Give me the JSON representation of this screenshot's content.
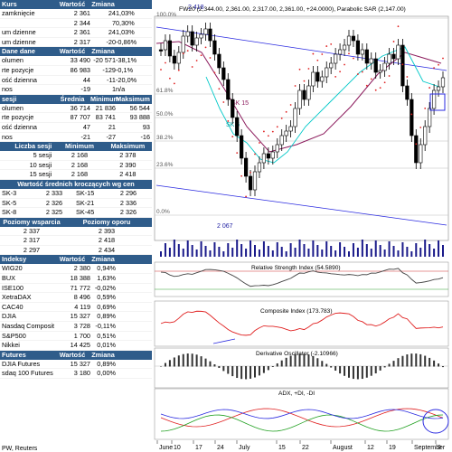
{
  "kursy": {
    "headers": [
      "Kurs",
      "Wartość",
      "Zmiana"
    ],
    "rows": [
      [
        "zamknięcie",
        "2 361",
        "24",
        "1,03%"
      ],
      [
        "",
        "2 344",
        "7",
        "0,30%"
      ],
      [
        "um dzienne",
        "2 361",
        "24",
        "1,03%"
      ],
      [
        "um dzienne",
        "2 317",
        "-20",
        "-0,86%"
      ]
    ]
  },
  "dane": {
    "headers": [
      "Dane dane",
      "Wartość",
      "Zmiana"
    ],
    "rows": [
      [
        "olumen",
        "33 490",
        "-20 571",
        "-38,1%"
      ],
      [
        "rte pozycje",
        "86 983",
        "-129",
        "-0,1%"
      ],
      [
        "ość dzienna",
        "44",
        "-11",
        "-20,0%"
      ],
      [
        "nos",
        "-19",
        "1",
        "n/a"
      ]
    ]
  },
  "sesji": {
    "headers": [
      "sesji",
      "Średnia",
      "Minimum",
      "Maksimum"
    ],
    "rows": [
      [
        "olumen",
        "36 714",
        "21 836",
        "56 544"
      ],
      [
        "rte pozycje",
        "87 707",
        "83 741",
        "93 888"
      ],
      [
        "ość dzienna",
        "47",
        "21",
        "93"
      ],
      [
        "nos",
        "-21",
        "-27",
        "-16"
      ]
    ]
  },
  "liczba": {
    "headers": [
      "Liczba sesji",
      "Minimum",
      "Maksimum"
    ],
    "rows": [
      [
        "5 sesji",
        "2 168",
        "2 378"
      ],
      [
        "10 sesji",
        "2 168",
        "2 390"
      ],
      [
        "15 sesji",
        "2 168",
        "2 418"
      ]
    ]
  },
  "srednie": {
    "title": "Wartość średnich kroczących wg cen zamknięcia",
    "rows": [
      [
        "SK-3",
        "2 333",
        "SK-15",
        "2 296"
      ],
      [
        "SK-5",
        "2 326",
        "SK-21",
        "2 336"
      ],
      [
        "SK-8",
        "2 325",
        "SK-45",
        "2 326"
      ]
    ]
  },
  "poziomy": {
    "headers": [
      "Poziomy wsparcia",
      "Poziomy oporu"
    ],
    "rows": [
      [
        "2 337",
        "2 393"
      ],
      [
        "2 317",
        "2 418"
      ],
      [
        "2 297",
        "2 434"
      ]
    ]
  },
  "indeksy": {
    "headers": [
      "Indeksy",
      "Wartość",
      "Zmiana"
    ],
    "rows": [
      [
        "WIG20",
        "2 380",
        "0,94%"
      ],
      [
        "BUX",
        "18 388",
        "1,63%"
      ],
      [
        "ISE100",
        "71 772",
        "-0,02%"
      ],
      [
        "XetraDAX",
        "8 496",
        "0,59%"
      ],
      [
        "CAC40",
        "4 119",
        "0,69%"
      ],
      [
        "DJIA",
        "15 327",
        "0,89%"
      ],
      [
        "Nasdaq Composite",
        "3 728",
        "-0,11%"
      ],
      [
        "S&P500",
        "1 700",
        "0,51%"
      ],
      [
        "Nikkei",
        "14 425",
        "0,01%"
      ]
    ]
  },
  "futures": {
    "headers": [
      "Futures",
      "Wartość",
      "Zmiana"
    ],
    "rows": [
      [
        "DJIA Futures",
        "15 327",
        "0,89%"
      ],
      [
        "sdaq 100 Futures",
        "3 180",
        "0,00%"
      ]
    ]
  },
  "footer": "PW, Reuters",
  "chart": {
    "legend": "FW20 (2,344.00, 2,361.00, 2,317.00, 2,361.00, +24.0000), Parabolic SAR (2,147.00)",
    "price_top_label": "2 418",
    "price_low_label": "2 067",
    "fib": [
      "0.0%",
      "23.6%",
      "38.2%",
      "50.0%",
      "61.8%",
      "100.0%"
    ],
    "sk15": "SK 15",
    "sk5": "SK 5",
    "rsi": "Relative Strength Index (54.5890)",
    "ci": "Composite Index (173.783)",
    "dosc": "Derivative Oscillator (-2.10966)",
    "adx": "ADX, +DI, -DI",
    "xlabels": [
      "June",
      "10",
      "17",
      "24",
      "July",
      "15",
      "22",
      "August",
      "12",
      "19",
      "September",
      "9"
    ],
    "colors": {
      "header": "#2f5c8a",
      "price": "#000000",
      "sk15": "#8b1a5c",
      "sk5": "#00c8c8",
      "sar": "#e02020",
      "channel": "#2a2ae0",
      "rsi": "#333333",
      "ci": "#e02020"
    },
    "chart_data": {
      "type": "candlestick",
      "title": "FW20 (2,344.00, 2,361.00, 2,317.00, 2,361.00, +24.0000), Parabolic SAR (2,147.00)",
      "ohlc_last": {
        "open": 2344,
        "high": 2361,
        "low": 2317,
        "close": 2361,
        "change": 24
      },
      "parabolic_sar": 2147,
      "rsi": 54.589,
      "composite_index": 173.783,
      "derivative_oscillator": -2.10966,
      "price_extremes": {
        "high": 2418,
        "low": 2067
      },
      "fibonacci_levels": [
        "0.0%",
        "23.6%",
        "38.2%",
        "50.0%",
        "61.8%",
        "100.0%"
      ]
    }
  }
}
